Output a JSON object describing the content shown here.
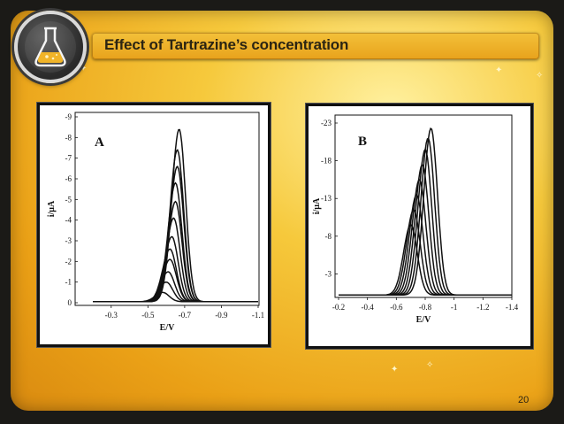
{
  "slide": {
    "title": "Effect of Tartrazine’s concentration",
    "page_number": "20",
    "colors": {
      "accent": "#eaa016",
      "title_text": "#2b2412"
    }
  },
  "logo": {
    "icon": "flask-icon"
  },
  "chart_data": [
    {
      "type": "line",
      "panel_label": "A",
      "xlabel": "E/V",
      "ylabel": "i/µA",
      "xlim": [
        -0.2,
        -1.1
      ],
      "ylim": [
        0,
        -9
      ],
      "x_ticks": [
        "-0.3",
        "-0.5",
        "-0.7",
        "-0.9",
        "-1.1"
      ],
      "x_tick_values": [
        -0.3,
        -0.5,
        -0.7,
        -0.9,
        -1.1
      ],
      "y_ticks": [
        "-9",
        "-8",
        "-7",
        "-6",
        "-5",
        "-4",
        "-3",
        "-2",
        "-1",
        "0"
      ],
      "y_tick_values": [
        -9,
        -8,
        -7,
        -6,
        -5,
        -4,
        -3,
        -2,
        -1,
        0
      ],
      "series": [
        {
          "peak_x": -0.58,
          "peak_y": -0.5
        },
        {
          "peak_x": -0.6,
          "peak_y": -1.0
        },
        {
          "peak_x": -0.61,
          "peak_y": -1.5
        },
        {
          "peak_x": -0.62,
          "peak_y": -2.1
        },
        {
          "peak_x": -0.62,
          "peak_y": -2.6
        },
        {
          "peak_x": -0.63,
          "peak_y": -3.2
        },
        {
          "peak_x": -0.64,
          "peak_y": -4.1
        },
        {
          "peak_x": -0.65,
          "peak_y": -4.9
        },
        {
          "peak_x": -0.65,
          "peak_y": -5.8
        },
        {
          "peak_x": -0.66,
          "peak_y": -6.6
        },
        {
          "peak_x": -0.66,
          "peak_y": -7.4
        },
        {
          "peak_x": -0.67,
          "peak_y": -8.4
        }
      ]
    },
    {
      "type": "line",
      "panel_label": "B",
      "xlabel": "E/V",
      "ylabel": "i/µA",
      "xlim": [
        -0.2,
        -1.4
      ],
      "ylim": [
        0,
        -23
      ],
      "x_ticks": [
        "-0.2",
        "-0.4",
        "-0.6",
        "-0.8",
        "-1",
        "-1.2",
        "-1.4"
      ],
      "x_tick_values": [
        -0.2,
        -0.4,
        -0.6,
        -0.8,
        -1.0,
        -1.2,
        -1.4
      ],
      "y_ticks": [
        "-23",
        "-18",
        "-13",
        "-8",
        "-3"
      ],
      "y_tick_values": [
        -23,
        -18,
        -13,
        -8,
        -3
      ],
      "series": [
        {
          "peak_x": -0.7,
          "peak_y": -9.5
        },
        {
          "peak_x": -0.72,
          "peak_y": -11.5
        },
        {
          "peak_x": -0.74,
          "peak_y": -13.5
        },
        {
          "peak_x": -0.76,
          "peak_y": -15.5
        },
        {
          "peak_x": -0.78,
          "peak_y": -17.5
        },
        {
          "peak_x": -0.8,
          "peak_y": -19.5
        },
        {
          "peak_x": -0.82,
          "peak_y": -21.0
        },
        {
          "peak_x": -0.84,
          "peak_y": -22.3
        }
      ]
    }
  ]
}
